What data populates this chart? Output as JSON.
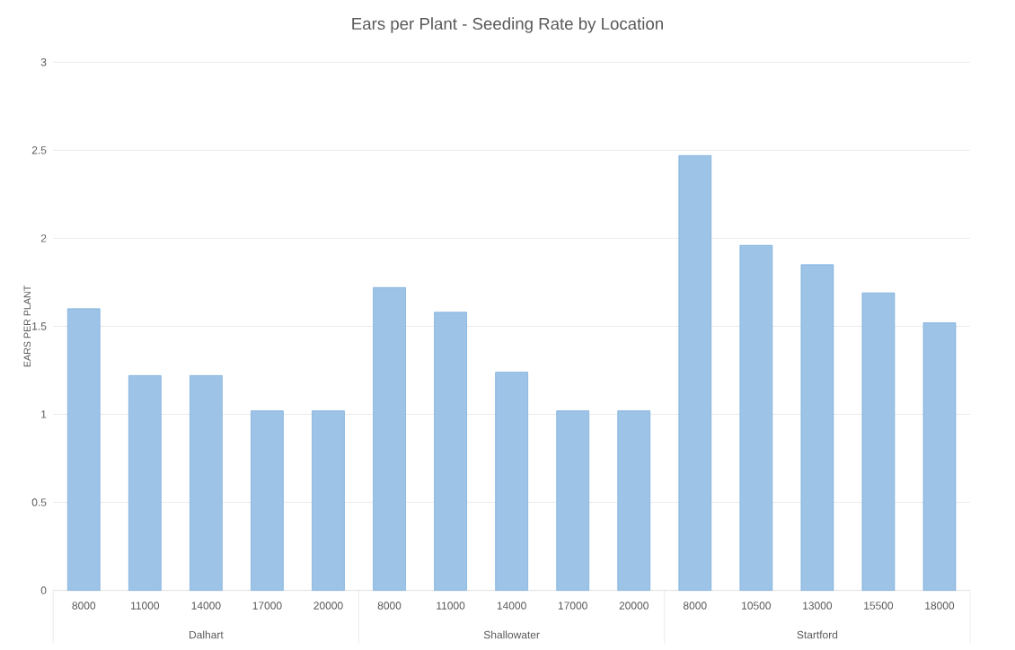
{
  "chart_data": {
    "type": "bar",
    "title": "Ears per Plant - Seeding Rate by Location",
    "ylabel": "EARS PER PLANT",
    "categories": [
      "8000",
      "11000",
      "14000",
      "17000",
      "20000",
      "8000",
      "11000",
      "14000",
      "17000",
      "20000",
      "8000",
      "10500",
      "13000",
      "15500",
      "18000"
    ],
    "values": [
      1.6,
      1.22,
      1.22,
      1.02,
      1.02,
      1.72,
      1.58,
      1.24,
      1.02,
      1.02,
      2.47,
      1.96,
      1.85,
      1.69,
      1.52
    ],
    "color": "#9dc3e6",
    "ylim": [
      0,
      3
    ],
    "yticks": [
      0,
      0.5,
      1,
      1.5,
      2,
      2.5,
      3
    ],
    "grid": "y",
    "annotations": [
      "Dalhart",
      "Shallowater",
      "Startford"
    ]
  }
}
